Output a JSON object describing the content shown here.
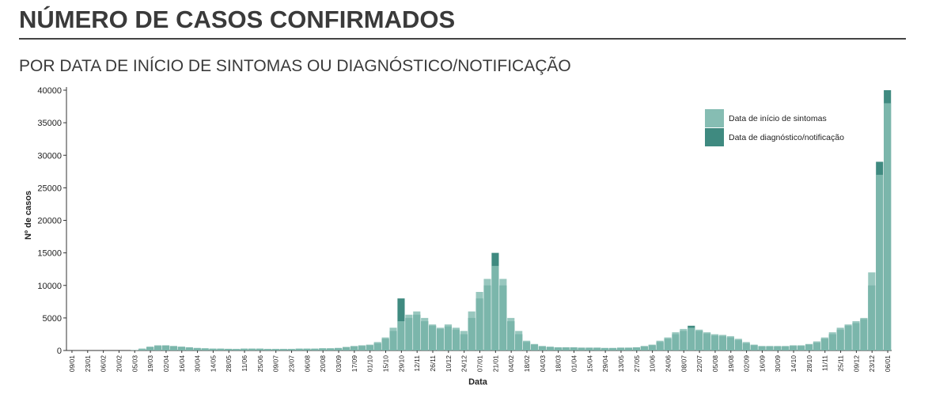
{
  "chart_data": {
    "type": "bar",
    "title": "NÚMERO DE CASOS CONFIRMADOS",
    "subtitle": "POR DATA DE INÍCIO DE SINTOMAS OU DIAGNÓSTICO/NOTIFICAÇÃO",
    "x_label": "Data",
    "y_label": "Nº de casos",
    "categories": [
      "09/01",
      null,
      "23/01",
      null,
      "06/02",
      null,
      "20/02",
      null,
      "05/03",
      null,
      "19/03",
      null,
      "02/04",
      null,
      "16/04",
      null,
      "30/04",
      null,
      "14/05",
      null,
      "28/05",
      null,
      "11/06",
      null,
      "25/06",
      null,
      "09/07",
      null,
      "23/07",
      null,
      "06/08",
      null,
      "20/08",
      null,
      "03/09",
      null,
      "17/09",
      null,
      "01/10",
      null,
      "15/10",
      null,
      "29/10",
      null,
      "12/11",
      null,
      "26/11",
      null,
      "10/12",
      null,
      "24/12",
      null,
      "07/01",
      null,
      "21/01",
      null,
      "04/02",
      null,
      "18/02",
      null,
      "04/03",
      null,
      "18/03",
      null,
      "01/04",
      null,
      "15/04",
      null,
      "29/04",
      null,
      "13/05",
      null,
      "27/05",
      null,
      "10/06",
      null,
      "24/06",
      null,
      "08/07",
      null,
      "22/07",
      null,
      "05/08",
      null,
      "19/08",
      null,
      "02/09",
      null,
      "16/09",
      null,
      "30/09",
      null,
      "14/10",
      null,
      "28/10",
      null,
      "11/11",
      null,
      "25/11",
      null,
      "09/12",
      null,
      "23/12",
      null,
      "06/01"
    ],
    "series": [
      {
        "name": "Data de diagnóstico/notificação",
        "color": "#3f8a80",
        "values": [
          0,
          0,
          0,
          0,
          0,
          0,
          0,
          0,
          0,
          200,
          500,
          700,
          750,
          650,
          550,
          450,
          350,
          300,
          250,
          250,
          250,
          200,
          250,
          250,
          250,
          200,
          200,
          200,
          200,
          250,
          250,
          250,
          300,
          300,
          350,
          500,
          600,
          700,
          800,
          1100,
          1800,
          3000,
          8000,
          5000,
          5500,
          4500,
          3800,
          3300,
          3700,
          3200,
          2500,
          5000,
          8000,
          10000,
          15000,
          10000,
          4500,
          2500,
          1300,
          900,
          600,
          500,
          450,
          450,
          450,
          400,
          400,
          400,
          350,
          350,
          400,
          400,
          450,
          600,
          800,
          1300,
          1800,
          2500,
          3000,
          3800,
          3000,
          2600,
          2300,
          2200,
          2000,
          1600,
          1100,
          800,
          600,
          600,
          600,
          600,
          700,
          700,
          900,
          1200,
          1800,
          2500,
          3200,
          3800,
          4200,
          4800,
          10000,
          29000,
          40000
        ]
      },
      {
        "name": "Data de início de sintomas",
        "color": "#86bdb3",
        "values": [
          0,
          0,
          0,
          0,
          0,
          0,
          0,
          0,
          50,
          300,
          600,
          800,
          800,
          700,
          600,
          500,
          400,
          350,
          300,
          300,
          250,
          250,
          300,
          300,
          300,
          250,
          250,
          250,
          250,
          300,
          300,
          300,
          350,
          350,
          400,
          550,
          700,
          800,
          900,
          1300,
          2000,
          3500,
          4500,
          5500,
          6000,
          5000,
          4000,
          3500,
          4000,
          3500,
          3000,
          6000,
          9000,
          11000,
          13000,
          11000,
          5000,
          3000,
          1500,
          1000,
          700,
          600,
          500,
          500,
          500,
          450,
          450,
          450,
          400,
          400,
          450,
          450,
          500,
          700,
          900,
          1500,
          2000,
          2800,
          3300,
          3500,
          3200,
          2800,
          2500,
          2400,
          2200,
          1800,
          1300,
          900,
          700,
          700,
          700,
          700,
          800,
          800,
          1000,
          1400,
          2000,
          2800,
          3500,
          4000,
          4500,
          5000,
          12000,
          27000,
          38000
        ]
      }
    ],
    "ylim": [
      0,
      40000
    ],
    "yticks": [
      0,
      5000,
      10000,
      15000,
      20000,
      25000,
      30000,
      35000,
      40000
    ]
  }
}
